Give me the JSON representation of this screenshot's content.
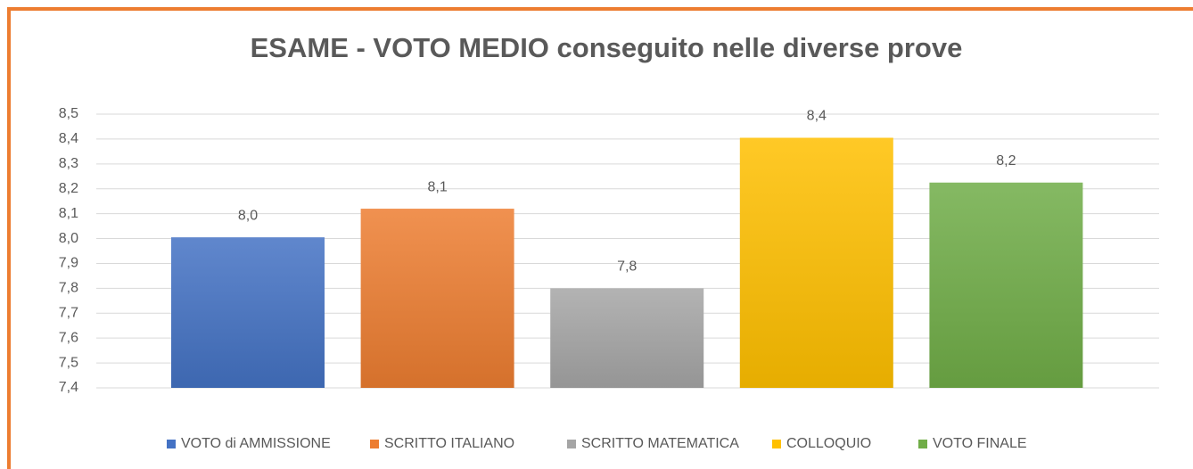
{
  "chart_data": {
    "type": "bar",
    "title": "ESAME - VOTO MEDIO conseguito nelle diverse prove",
    "series": [
      {
        "name": "VOTO di AMMISSIONE",
        "color": "#4472c4",
        "values": [
          8.005
        ],
        "value_labels": [
          "8,0"
        ]
      },
      {
        "name": "SCRITTO ITALIANO",
        "color": "#ed7d31",
        "values": [
          8.12
        ],
        "value_labels": [
          "8,1"
        ]
      },
      {
        "name": "SCRITTO MATEMATICA",
        "color": "#a5a5a5",
        "values": [
          7.8
        ],
        "value_labels": [
          "7,8"
        ]
      },
      {
        "name": "COLLOQUIO",
        "color": "#ffc000",
        "values": [
          8.405
        ],
        "value_labels": [
          "8,4"
        ]
      },
      {
        "name": "VOTO FINALE",
        "color": "#70ad47",
        "values": [
          8.225
        ],
        "value_labels": [
          "8,2"
        ]
      }
    ],
    "ylim": [
      7.4,
      8.5
    ],
    "yticks": [
      {
        "value": 7.4,
        "label": "7,4"
      },
      {
        "value": 7.5,
        "label": "7,5"
      },
      {
        "value": 7.6,
        "label": "7,6"
      },
      {
        "value": 7.7,
        "label": "7,7"
      },
      {
        "value": 7.8,
        "label": "7,8"
      },
      {
        "value": 7.9,
        "label": "7,9"
      },
      {
        "value": 8.0,
        "label": "8,0"
      },
      {
        "value": 8.1,
        "label": "8,1"
      },
      {
        "value": 8.2,
        "label": "8,2"
      },
      {
        "value": 8.3,
        "label": "8,3"
      },
      {
        "value": 8.4,
        "label": "8,4"
      },
      {
        "value": 8.5,
        "label": "8,5"
      }
    ],
    "grid": true,
    "legend": "bottom"
  }
}
